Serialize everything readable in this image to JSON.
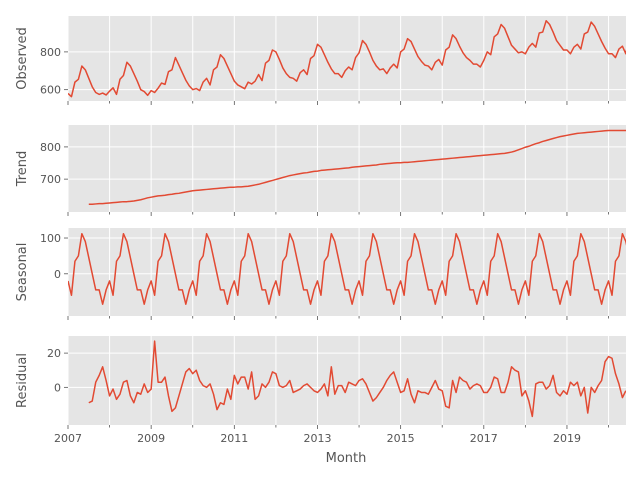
{
  "chart_data": {
    "type": "line",
    "layout": "4 vertically stacked subplots sharing the x axis (seasonal decomposition)",
    "style": "grey panel background, white grid, no legend",
    "line_color": "#E24A33",
    "panel_color": "#E5E5E5",
    "grid_color": "#FFFFFF",
    "x": {
      "label": "Month",
      "range": [
        2007.0,
        2020.42
      ],
      "ticks": [
        2007,
        2009,
        2011,
        2013,
        2015,
        2017,
        2019
      ],
      "tick_labels": [
        "2007",
        "2009",
        "2011",
        "2013",
        "2015",
        "2017",
        "2019"
      ],
      "minor_ticks": [
        2008,
        2010,
        2012,
        2014,
        2016,
        2018,
        2020
      ]
    },
    "panels": [
      {
        "ylabel": "Observed",
        "ylim": [
          540,
          990
        ],
        "yticks": [
          600,
          800
        ],
        "ytick_labels": [
          "600",
          "800"
        ],
        "x_start": 2007.0,
        "values": [
          580,
          563,
          640,
          655,
          725,
          705,
          660,
          615,
          585,
          575,
          582,
          572,
          592,
          610,
          575,
          655,
          675,
          745,
          725,
          685,
          645,
          600,
          590,
          570,
          595,
          585,
          608,
          635,
          628,
          695,
          705,
          770,
          730,
          690,
          650,
          620,
          600,
          606,
          595,
          640,
          660,
          625,
          705,
          720,
          785,
          765,
          725,
          685,
          645,
          625,
          615,
          605,
          640,
          630,
          645,
          680,
          648,
          740,
          755,
          810,
          800,
          760,
          715,
          685,
          665,
          660,
          645,
          690,
          705,
          680,
          765,
          780,
          840,
          825,
          785,
          745,
          710,
          685,
          685,
          665,
          700,
          720,
          705,
          770,
          795,
          860,
          840,
          800,
          755,
          725,
          705,
          710,
          685,
          715,
          735,
          715,
          800,
          815,
          870,
          855,
          815,
          775,
          750,
          730,
          725,
          705,
          745,
          760,
          730,
          810,
          825,
          890,
          870,
          830,
          795,
          770,
          755,
          735,
          735,
          720,
          755,
          800,
          785,
          880,
          895,
          945,
          925,
          880,
          835,
          815,
          795,
          800,
          790,
          825,
          845,
          825,
          900,
          905,
          965,
          945,
          905,
          860,
          835,
          810,
          810,
          790,
          825,
          840,
          815,
          895,
          905,
          958,
          935,
          895,
          855,
          820,
          790,
          790,
          770,
          815,
          830,
          790,
          890,
          900,
          975,
          960,
          930,
          885,
          845,
          815,
          810,
          780,
          800,
          815,
          790,
          890,
          890,
          960,
          950
        ]
      },
      {
        "ylabel": "Trend",
        "ylim": [
          598,
          868
        ],
        "yticks": [
          700,
          800
        ],
        "ytick_labels": [
          "700",
          "800"
        ],
        "x_start": 2007.5,
        "values": [
          622,
          622,
          623,
          624,
          624,
          625,
          626,
          627,
          628,
          629,
          630,
          630,
          631,
          632,
          634,
          636,
          639,
          642,
          644,
          646,
          648,
          649,
          650,
          652,
          653,
          655,
          656,
          658,
          660,
          662,
          664,
          665,
          666,
          667,
          668,
          669,
          670,
          671,
          672,
          673,
          674,
          675,
          675,
          676,
          676,
          677,
          678,
          680,
          682,
          684,
          687,
          690,
          693,
          696,
          699,
          702,
          705,
          708,
          711,
          713,
          715,
          717,
          719,
          720,
          722,
          724,
          725,
          727,
          728,
          729,
          730,
          731,
          732,
          733,
          734,
          735,
          737,
          738,
          739,
          740,
          741,
          742,
          743,
          744,
          746,
          747,
          748,
          749,
          750,
          751,
          751,
          752,
          752,
          753,
          754,
          755,
          756,
          757,
          758,
          759,
          760,
          761,
          762,
          763,
          764,
          765,
          766,
          767,
          768,
          769,
          770,
          771,
          772,
          773,
          774,
          775,
          776,
          777,
          778,
          779,
          780,
          782,
          784,
          787,
          791,
          795,
          799,
          802,
          806,
          810,
          813,
          817,
          820,
          823,
          826,
          829,
          832,
          834,
          836,
          838,
          840,
          842,
          843,
          844,
          845,
          846,
          847,
          848,
          849,
          850,
          851,
          851,
          851,
          851,
          851,
          851,
          850,
          850,
          849,
          849,
          849,
          848,
          848,
          847,
          846,
          845,
          844,
          843,
          843,
          843,
          843,
          843,
          843,
          844,
          844,
          845,
          846,
          847,
          849,
          851,
          852,
          854,
          855,
          856,
          857,
          857,
          858,
          858,
          858,
          858,
          858,
          858,
          858,
          858
        ]
      },
      {
        "ylabel": "Seasonal",
        "ylim": [
          -118,
          128
        ],
        "yticks": [
          0,
          100
        ],
        "ytick_labels": [
          "0",
          "100"
        ],
        "x_start": 2007.0,
        "pattern": [
          -20,
          -60,
          35,
          50,
          112,
          90,
          45,
          0,
          -45,
          -45,
          -85,
          -45
        ],
        "values": [
          -20,
          -60,
          35,
          50,
          112,
          90,
          45,
          0,
          -45,
          -45,
          -85,
          -45,
          -20,
          -60,
          35,
          50,
          112,
          90,
          45,
          0,
          -45,
          -45,
          -85,
          -45,
          -20,
          -60,
          35,
          50,
          112,
          90,
          45,
          0,
          -45,
          -45,
          -85,
          -45,
          -20,
          -60,
          35,
          50,
          112,
          90,
          45,
          0,
          -45,
          -45,
          -85,
          -45,
          -20,
          -60,
          35,
          50,
          112,
          90,
          45,
          0,
          -45,
          -45,
          -85,
          -45,
          -20,
          -60,
          35,
          50,
          112,
          90,
          45,
          0,
          -45,
          -45,
          -85,
          -45,
          -20,
          -60,
          35,
          50,
          112,
          90,
          45,
          0,
          -45,
          -45,
          -85,
          -45,
          -20,
          -60,
          35,
          50,
          112,
          90,
          45,
          0,
          -45,
          -45,
          -85,
          -45,
          -20,
          -60,
          35,
          50,
          112,
          90,
          45,
          0,
          -45,
          -45,
          -85,
          -45,
          -20,
          -60,
          35,
          50,
          112,
          90,
          45,
          0,
          -45,
          -45,
          -85,
          -45,
          -20,
          -60,
          35,
          50,
          112,
          90,
          45,
          0,
          -45,
          -45,
          -85,
          -45,
          -20,
          -60,
          35,
          50,
          112,
          90,
          45,
          0,
          -45,
          -45,
          -85,
          -45,
          -20,
          -60,
          35,
          50,
          112,
          90,
          45,
          0,
          -45,
          -45,
          -85,
          -45,
          -20,
          -60,
          35,
          50,
          112,
          90,
          45,
          0,
          -45,
          -45,
          -85,
          -45,
          -20,
          -60,
          35,
          50,
          112,
          90,
          45
        ]
      },
      {
        "ylabel": "Residual",
        "ylim": [
          -22,
          30
        ],
        "yticks": [
          0,
          20
        ],
        "ytick_labels": [
          "0",
          "20"
        ],
        "x_start": 2007.5,
        "values": [
          -9,
          -8,
          3,
          7,
          12,
          4,
          -5,
          -1,
          -7,
          -4,
          3,
          4,
          -5,
          -9,
          -3,
          -4,
          2,
          -3,
          -1,
          27,
          3,
          3,
          6,
          -5,
          -14,
          -12,
          -5,
          2,
          9,
          11,
          8,
          10,
          4,
          1,
          0,
          2,
          -4,
          -13,
          -9,
          -10,
          -1,
          -7,
          7,
          2,
          6,
          6,
          -1,
          9,
          -7,
          -5,
          2,
          0,
          3,
          9,
          8,
          1,
          0,
          1,
          4,
          -3,
          -2,
          -1,
          1,
          2,
          0,
          -2,
          -3,
          -1,
          2,
          -5,
          12,
          -4,
          1,
          1,
          -3,
          3,
          2,
          1,
          4,
          5,
          2,
          -3,
          -8,
          -6,
          -3,
          0,
          4,
          7,
          9,
          3,
          -3,
          -2,
          5,
          -4,
          -9,
          -2,
          -3,
          -3,
          -4,
          0,
          4,
          -1,
          -2,
          -11,
          -12,
          4,
          -3,
          6,
          4,
          3,
          -1,
          1,
          2,
          1,
          -3,
          -3,
          0,
          6,
          5,
          -3,
          -3,
          3,
          12,
          10,
          9,
          -5,
          -2,
          -8,
          -17,
          2,
          3,
          3,
          -1,
          1,
          7,
          -3,
          -5,
          -2,
          -4,
          3,
          1,
          3,
          -5,
          0,
          -15,
          0,
          -3,
          1,
          4,
          15,
          18,
          17,
          8,
          2,
          -6,
          -2
        ]
      }
    ]
  }
}
